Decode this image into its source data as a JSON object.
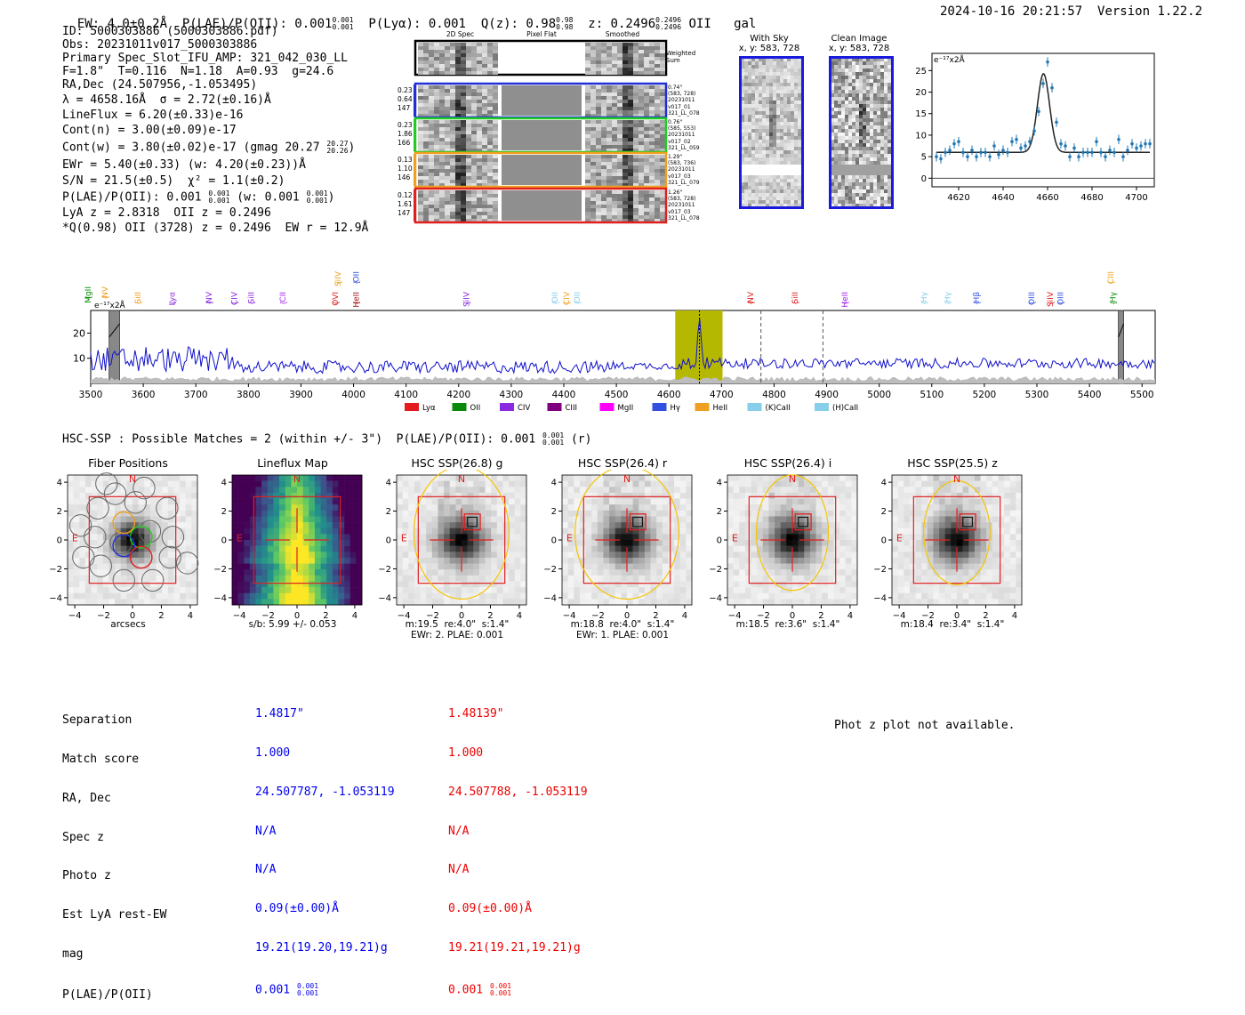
{
  "header": {
    "ew": "EW: 4.0±0.2Å",
    "plae_label": "P(LAE)/P(OII): 0.001",
    "plae_hi": "0.001",
    "plae_lo": "0.001",
    "plya": "P(Lyα): 0.001",
    "q_label": "Q(z): 0.98",
    "q_hi": "0.98",
    "q_lo": "0.98",
    "z_label": "z: 0.2496",
    "z_hi": "0.2496",
    "z_lo": "0.2496",
    "z_line": "OII",
    "z_type": "gal",
    "timestamp": "2024-10-16 20:21:57",
    "version": "Version 1.22.2"
  },
  "info": {
    "id": "ID: 5000303886 (5000303886.pdf)",
    "obs": "Obs: 20231011v017_5000303886",
    "primary": "Primary Spec_Slot_IFU_AMP: 321_042_030_LL",
    "params": "F=1.8\"  T=0.116  N=1.18  A=0.93  g=24.6",
    "radec": "RA,Dec (24.507956,-1.053495)",
    "lambda": "λ = 4658.16Å  σ = 2.72(±0.16)Å",
    "lineflux": "LineFlux = 6.20(±0.33)e-16",
    "contn": "Cont(n) = 3.00(±0.09)e-17",
    "contw_a": "Cont(w) = 3.80(±0.02)e-17 (gmag 20.27",
    "contw_hi": "20.27",
    "contw_lo": "20.26",
    "contw_b": ")",
    "ewr": "EWr = 5.40(±0.33) (w: 4.20(±0.23))Å",
    "sn": "S/N = 21.5(±0.5)  χ² = 1.1(±0.2)",
    "plae_a": "P(LAE)/P(OII): 0.001",
    "plae_hi": "0.001",
    "plae_lo": "0.001",
    "plae_b": " (w: 0.001",
    "plae_whi": "0.001",
    "plae_wlo": "0.001",
    "plae_c": ")",
    "lya": "LyA z = 2.8318  OII z = 0.2496",
    "q": "*Q(0.98) OII (3728) z = 0.2496  EW r = 12.9Å"
  },
  "cutouts": {
    "col_labels": [
      "2D Spec",
      "Pixel Flat",
      "Smoothed"
    ],
    "weighted_sum": "Weighted Sum",
    "rows": [
      {
        "left": [
          "0.23",
          "0.64",
          "147"
        ],
        "right": [
          "0.74\"",
          "(583, 728)",
          "20231011",
          "v017_01",
          "321_LL_078"
        ],
        "color": "#1f2fd6"
      },
      {
        "left": [
          "0.23",
          "1.86",
          "166"
        ],
        "right": [
          "0.76\"",
          "(585, 553)",
          "20231011",
          "v017_02",
          "321_LL_059"
        ],
        "color": "#22cc22"
      },
      {
        "left": [
          "0.13",
          "1.10",
          "146"
        ],
        "right": [
          "1.29\"",
          "(583, 736)",
          "20231011",
          "v017_03",
          "321_LL_079"
        ],
        "color": "#f0a020"
      },
      {
        "left": [
          "0.12",
          "1.61",
          "147"
        ],
        "right": [
          "1.26\"",
          "(583, 728)",
          "20231011",
          "v017_03",
          "321_LL_078"
        ],
        "color": "#e02020"
      }
    ]
  },
  "sky_panels": {
    "with_sky_title": "With Sky",
    "with_sky_coords": "x, y: 583, 728",
    "clean_title": "Clean Image",
    "clean_coords": "x, y: 583, 728"
  },
  "zoom_chart_data": {
    "type": "line",
    "unit_label": "e⁻¹⁷x2Å",
    "xlim": [
      4608,
      4708
    ],
    "ylim": [
      -2,
      29
    ],
    "xticks": [
      4620,
      4640,
      4660,
      4680,
      4700
    ],
    "yticks": [
      0,
      5,
      10,
      15,
      20,
      25
    ],
    "points_x": [
      4610,
      4612,
      4614,
      4616,
      4618,
      4620,
      4622,
      4624,
      4626,
      4628,
      4630,
      4632,
      4634,
      4636,
      4638,
      4640,
      4642,
      4644,
      4646,
      4648,
      4650,
      4652,
      4654,
      4656,
      4658,
      4660,
      4662,
      4664,
      4666,
      4668,
      4670,
      4672,
      4674,
      4676,
      4678,
      4680,
      4682,
      4684,
      4686,
      4688,
      4690,
      4692,
      4694,
      4696,
      4698,
      4700,
      4702,
      4704,
      4706
    ],
    "points_y": [
      5,
      4.5,
      6,
      6.5,
      8,
      8.5,
      6,
      5,
      6.5,
      5,
      6,
      6,
      5,
      7.5,
      5.5,
      6.5,
      6,
      8.5,
      9,
      7,
      7.5,
      8.5,
      11,
      15.5,
      22,
      27,
      21,
      13,
      8,
      7.5,
      5,
      7,
      5,
      6,
      6,
      6,
      8.5,
      6,
      5,
      6.5,
      6,
      9,
      5,
      6.5,
      8,
      7,
      7.5,
      8,
      8
    ],
    "fit": {
      "center": 4658.16,
      "sigma": 2.72,
      "amplitude": 18.3,
      "continuum": 6
    }
  },
  "main_chart_data": {
    "type": "line",
    "unit_label": "e⁻¹⁷x2Å",
    "xlim": [
      3500,
      5525
    ],
    "ylim": [
      0,
      29
    ],
    "xticks": [
      3500,
      3600,
      3700,
      3800,
      3900,
      4000,
      4100,
      4200,
      4300,
      4400,
      4500,
      4600,
      4700,
      4800,
      4900,
      5000,
      5100,
      5200,
      5300,
      5400,
      5500
    ],
    "yticks": [
      10,
      20
    ],
    "highlight": [
      4612,
      4702
    ],
    "peak_x": 4658,
    "peak_y": 26,
    "dashed_lines": [
      4775,
      4893
    ],
    "masked": [
      [
        3535,
        3555
      ],
      [
        5455,
        5465
      ]
    ],
    "lines": [
      {
        "name": "MgII",
        "x": 3495,
        "color": "#0a8a0a",
        "row": 1
      },
      {
        "name": "NV",
        "x": 3527,
        "color": "#f0a020",
        "row": 1
      },
      {
        "name": "SiII",
        "x": 3590,
        "color": "#f0a020",
        "row": 2
      },
      {
        "name": "Lyα",
        "x": 3655,
        "color": "#8a2be2",
        "row": 2
      },
      {
        "name": "NV",
        "x": 3725,
        "color": "#8a2be2",
        "row": 2
      },
      {
        "name": "CIV",
        "x": 3773,
        "color": "#8a2be2",
        "row": 2
      },
      {
        "name": "SiII",
        "x": 3805,
        "color": "#8a2be2",
        "row": 2
      },
      {
        "name": "CII",
        "x": 3865,
        "color": "#a020f0",
        "row": 2
      },
      {
        "name": "OVI",
        "x": 3965,
        "color": "#e02020",
        "row": 2
      },
      {
        "name": "HeII",
        "x": 4005,
        "color": "#a01010",
        "row": 2
      },
      {
        "name": "SiIV",
        "x": 3970,
        "color": "#f0a020",
        "row": 0
      },
      {
        "name": "OII",
        "x": 4005,
        "color": "#3050e0",
        "row": 0
      },
      {
        "name": "SiIV",
        "x": 4215,
        "color": "#8a2be2",
        "row": 2
      },
      {
        "name": "OII",
        "x": 4383,
        "color": "#87ceeb",
        "row": 2
      },
      {
        "name": "CIV",
        "x": 4405,
        "color": "#f0a020",
        "row": 2
      },
      {
        "name": "OII",
        "x": 4425,
        "color": "#87ceeb",
        "row": 2
      },
      {
        "name": "NV",
        "x": 4755,
        "color": "#e02020",
        "row": 2
      },
      {
        "name": "SiII",
        "x": 4840,
        "color": "#e02020",
        "row": 2
      },
      {
        "name": "HeII",
        "x": 4935,
        "color": "#a020f0",
        "row": 2
      },
      {
        "name": "Hγ",
        "x": 5085,
        "color": "#87ceeb",
        "row": 2
      },
      {
        "name": "Hγ",
        "x": 5130,
        "color": "#87ceeb",
        "row": 2
      },
      {
        "name": "Hβ",
        "x": 5185,
        "color": "#3050e0",
        "row": 2
      },
      {
        "name": "OIII",
        "x": 5290,
        "color": "#3050e0",
        "row": 2
      },
      {
        "name": "SiIV",
        "x": 5325,
        "color": "#e02020",
        "row": 2
      },
      {
        "name": "OIII",
        "x": 5345,
        "color": "#3050e0",
        "row": 2
      },
      {
        "name": "CIII",
        "x": 5440,
        "color": "#f0a020",
        "row": 0
      },
      {
        "name": "Hγ",
        "x": 5445,
        "color": "#0a8a0a",
        "row": 2
      }
    ],
    "legend": [
      {
        "name": "Lyα",
        "color": "#e41a1c"
      },
      {
        "name": "OII",
        "color": "#0a8a0a"
      },
      {
        "name": "CIV",
        "color": "#8a2be2"
      },
      {
        "name": "CIII",
        "color": "#800080"
      },
      {
        "name": "MgII",
        "color": "#ff00ff"
      },
      {
        "name": "Hγ",
        "color": "#3050e0"
      },
      {
        "name": "HeII",
        "color": "#f0a020"
      },
      {
        "name": "(K)CaII",
        "color": "#87ceeb"
      },
      {
        "name": "(H)CaII",
        "color": "#87ceeb"
      }
    ]
  },
  "hsc": {
    "title_a": "HSC-SSP : Possible Matches = 2 (within +/- 3\")  P(LAE)/P(OII): 0.001",
    "title_hi": "0.001",
    "title_lo": "0.001",
    "title_b": " (r)",
    "panels": [
      {
        "title": "Fiber Positions",
        "line1": "arcsecs",
        "line2": ""
      },
      {
        "title": "Lineflux Map",
        "line1": "s/b: 5.99 +/- 0.053",
        "line2": ""
      },
      {
        "title": "HSC SSP(26.8) g",
        "line1": "m:19.5  re:4.0\"  s:1.4\"",
        "line2": "EWr: 2. PLAE: 0.001"
      },
      {
        "title": "HSC SSP(26.4) r",
        "line1": "m:18.8  re:4.0\"  s:1.4\"",
        "line2": "EWr: 1. PLAE: 0.001"
      },
      {
        "title": "HSC SSP(26.4) i",
        "line1": "m:18.5  re:3.6\"  s:1.4\"",
        "line2": ""
      },
      {
        "title": "HSC SSP(25.5) z",
        "line1": "m:18.4  re:3.4\"  s:1.4\"",
        "line2": ""
      }
    ],
    "ticks": [
      "−4",
      "−2",
      "0",
      "2",
      "4"
    ],
    "compass_n": "N",
    "compass_e": "E"
  },
  "table": {
    "labels": [
      "Separation",
      "Match score",
      "RA, Dec",
      "Spec z",
      "Photo z",
      "Est LyA rest-EW",
      "mag",
      "P(LAE)/P(OII)"
    ],
    "col1": [
      "1.4817\"",
      "1.000",
      "24.507787, -1.053119",
      "N/A",
      "N/A",
      "0.09(±0.00)Å",
      "19.21(19.20,19.21)g",
      "0.001"
    ],
    "col1_plae_hi": "0.001",
    "col1_plae_lo": "0.001",
    "col2": [
      "1.48139\"",
      "1.000",
      "24.507788, -1.053119",
      "N/A",
      "N/A",
      "0.09(±0.00)Å",
      "19.21(19.21,19.21)g",
      "0.001"
    ],
    "col2_plae_hi": "0.001",
    "col2_plae_lo": "0.001",
    "col1_color": "#0000ee",
    "col2_color": "#ee0000"
  },
  "phot_z_note": "Phot z plot not available."
}
